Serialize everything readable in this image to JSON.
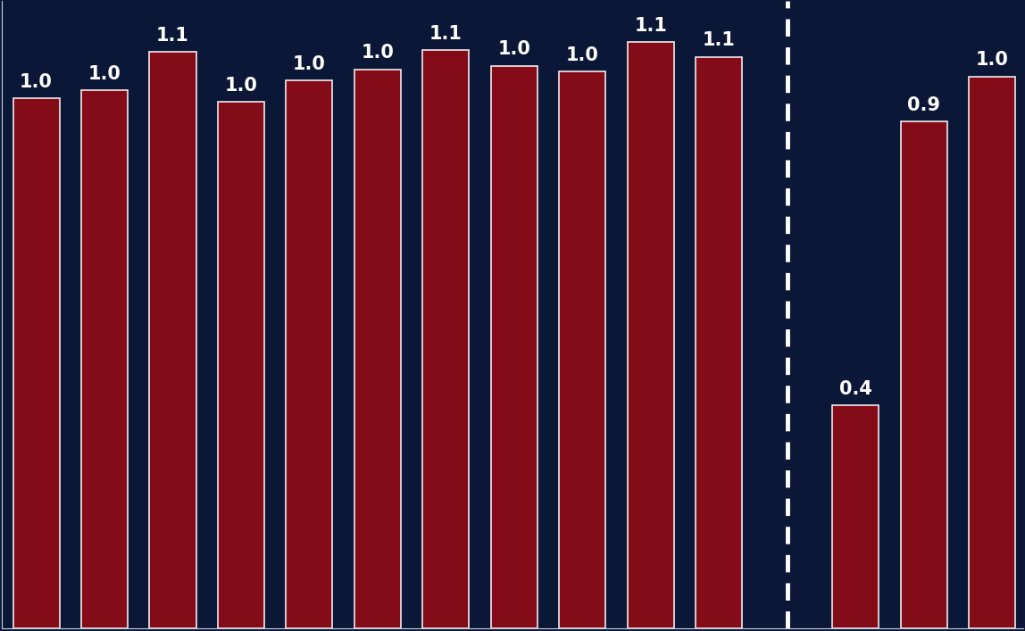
{
  "chart_data": {
    "type": "bar",
    "categories": [
      null,
      null,
      null,
      null,
      null,
      null,
      null,
      null,
      null,
      null,
      null,
      null,
      null,
      null,
      null
    ],
    "values": [
      0.98,
      0.995,
      1.066,
      0.974,
      1.013,
      1.034,
      1.07,
      1.041,
      1.03,
      1.085,
      1.057,
      null,
      0.413,
      0.938,
      1.021
    ],
    "value_labels": [
      "1.0",
      "1.0",
      "1.1",
      "1.0",
      "1.0",
      "1.0",
      "1.1",
      "1.0",
      "1.0",
      "1.1",
      "1.1",
      null,
      "0.4",
      "0.9",
      "1.0"
    ],
    "color": "#8e0c16",
    "ylim": [
      0,
      1.16
    ],
    "yticks": [],
    "grid": false,
    "data_labels": true,
    "tick_labels": false
  }
}
